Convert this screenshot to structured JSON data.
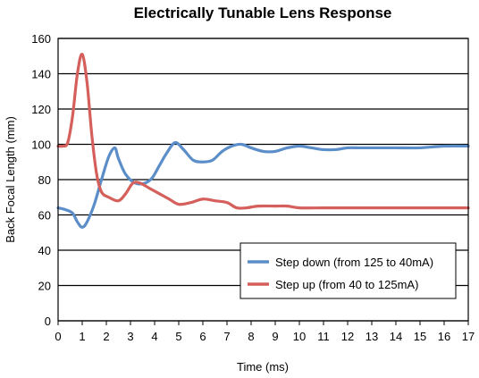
{
  "chart_data": {
    "type": "line",
    "title": "Electrically Tunable Lens Response",
    "xlabel": "Time (ms)",
    "ylabel": "Back Focal Length (mm)",
    "xlim": [
      0,
      17
    ],
    "ylim": [
      0,
      160
    ],
    "xticks": [
      0,
      1,
      2,
      3,
      4,
      5,
      6,
      7,
      8,
      9,
      10,
      11,
      12,
      13,
      14,
      15,
      16,
      17
    ],
    "yticks": [
      0,
      20,
      40,
      60,
      80,
      100,
      120,
      140,
      160
    ],
    "grid": "horizontal",
    "legend_position": "bottom-right",
    "series": [
      {
        "name": "Step down (from 125 to 40mA)",
        "color": "#5b8ec9",
        "x": [
          0,
          0.3,
          0.6,
          0.8,
          1.0,
          1.2,
          1.5,
          1.8,
          2.1,
          2.35,
          2.5,
          2.8,
          3.2,
          3.6,
          3.9,
          4.2,
          4.5,
          4.85,
          5.2,
          5.6,
          6.0,
          6.4,
          6.8,
          7.2,
          7.6,
          8.0,
          8.5,
          9.0,
          9.5,
          10.0,
          10.5,
          11.0,
          11.5,
          12.0,
          12.5,
          13.0,
          14.0,
          15.0,
          16.0,
          17.0
        ],
        "y": [
          64,
          63,
          61,
          56,
          53,
          56,
          66,
          80,
          93,
          98,
          92,
          83,
          78,
          78,
          81,
          88,
          95,
          101,
          97,
          91,
          90,
          91,
          96,
          99,
          100,
          98,
          96,
          96,
          98,
          99,
          98,
          97,
          97,
          98,
          98,
          98,
          98,
          98,
          99,
          99
        ]
      },
      {
        "name": "Step up (from 40 to 125mA)",
        "color": "#d45f5b",
        "x": [
          0,
          0.2,
          0.4,
          0.6,
          0.8,
          1.0,
          1.2,
          1.4,
          1.6,
          1.8,
          2.1,
          2.5,
          2.8,
          3.1,
          3.4,
          3.8,
          4.2,
          4.6,
          5.0,
          5.5,
          6.0,
          6.5,
          7.0,
          7.4,
          7.8,
          8.3,
          9.0,
          9.5,
          10.0,
          11.0,
          12.0,
          13.0,
          14.0,
          15.0,
          16.0,
          17.0
        ],
        "y": [
          99,
          99,
          101,
          116,
          140,
          151,
          135,
          105,
          83,
          73,
          70,
          68,
          72,
          78,
          78,
          75,
          72,
          69,
          66,
          67,
          69,
          68,
          67,
          64,
          64,
          65,
          65,
          65,
          64,
          64,
          64,
          64,
          64,
          64,
          64,
          64
        ]
      }
    ]
  }
}
